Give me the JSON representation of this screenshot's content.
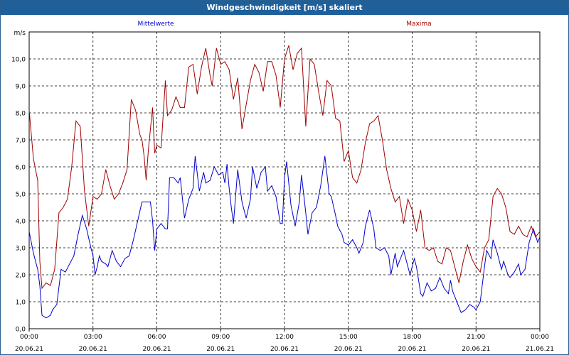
{
  "window": {
    "title": "Windgeschwindigkeit [m/s] skaliert"
  },
  "chart_data": {
    "type": "line",
    "ylabel": "m/s",
    "ylim": [
      0,
      11
    ],
    "yticks": [
      "0,0",
      "1,0",
      "2,0",
      "3,0",
      "4,0",
      "5,0",
      "6,0",
      "7,0",
      "8,0",
      "9,0",
      "10,0"
    ],
    "xlim_hours": [
      0,
      24
    ],
    "xticks": [
      {
        "time": "00:00",
        "date": "20.06.21"
      },
      {
        "time": "03:00",
        "date": "20.06.21"
      },
      {
        "time": "06:00",
        "date": "20.06.21"
      },
      {
        "time": "09:00",
        "date": "20.06.21"
      },
      {
        "time": "12:00",
        "date": "20.06.21"
      },
      {
        "time": "15:00",
        "date": "20.06.21"
      },
      {
        "time": "18:00",
        "date": "20.06.21"
      },
      {
        "time": "21:00",
        "date": "20.06.21"
      },
      {
        "time": "00:00",
        "date": "21.06.21"
      }
    ],
    "grid": true,
    "series": [
      {
        "name": "Mittelwerte",
        "color": "#0000cc",
        "points": [
          [
            0,
            3.6
          ],
          [
            0.2,
            2.8
          ],
          [
            0.4,
            2.2
          ],
          [
            0.5,
            1.6
          ],
          [
            0.6,
            0.5
          ],
          [
            0.8,
            0.4
          ],
          [
            1.0,
            0.5
          ],
          [
            1.1,
            0.7
          ],
          [
            1.3,
            0.9
          ],
          [
            1.5,
            2.2
          ],
          [
            1.7,
            2.1
          ],
          [
            1.9,
            2.4
          ],
          [
            2.1,
            2.7
          ],
          [
            2.3,
            3.5
          ],
          [
            2.5,
            4.2
          ],
          [
            2.7,
            3.7
          ],
          [
            2.9,
            3.0
          ],
          [
            3.0,
            2.7
          ],
          [
            3.1,
            2.0
          ],
          [
            3.2,
            2.3
          ],
          [
            3.3,
            2.7
          ],
          [
            3.4,
            2.5
          ],
          [
            3.6,
            2.4
          ],
          [
            3.7,
            2.3
          ],
          [
            3.9,
            2.9
          ],
          [
            4.1,
            2.5
          ],
          [
            4.3,
            2.3
          ],
          [
            4.5,
            2.6
          ],
          [
            4.7,
            2.7
          ],
          [
            4.9,
            3.3
          ],
          [
            5.1,
            4.0
          ],
          [
            5.3,
            4.7
          ],
          [
            5.5,
            4.7
          ],
          [
            5.7,
            4.7
          ],
          [
            5.8,
            4.0
          ],
          [
            5.9,
            2.9
          ],
          [
            6.0,
            3.7
          ],
          [
            6.2,
            3.9
          ],
          [
            6.4,
            3.7
          ],
          [
            6.5,
            3.7
          ],
          [
            6.6,
            5.6
          ],
          [
            6.8,
            5.6
          ],
          [
            7.0,
            5.4
          ],
          [
            7.1,
            5.6
          ],
          [
            7.3,
            4.1
          ],
          [
            7.5,
            4.8
          ],
          [
            7.7,
            5.2
          ],
          [
            7.8,
            6.4
          ],
          [
            8.0,
            5.1
          ],
          [
            8.2,
            5.8
          ],
          [
            8.3,
            5.4
          ],
          [
            8.5,
            5.5
          ],
          [
            8.7,
            6.0
          ],
          [
            8.9,
            5.7
          ],
          [
            9.1,
            5.8
          ],
          [
            9.2,
            5.4
          ],
          [
            9.3,
            6.1
          ],
          [
            9.4,
            5.2
          ],
          [
            9.5,
            4.5
          ],
          [
            9.6,
            3.9
          ],
          [
            9.8,
            5.9
          ],
          [
            10.0,
            4.7
          ],
          [
            10.2,
            4.1
          ],
          [
            10.4,
            4.8
          ],
          [
            10.5,
            6.0
          ],
          [
            10.7,
            5.2
          ],
          [
            10.9,
            5.8
          ],
          [
            11.1,
            6.0
          ],
          [
            11.2,
            5.1
          ],
          [
            11.4,
            5.3
          ],
          [
            11.6,
            4.9
          ],
          [
            11.8,
            3.9
          ],
          [
            11.9,
            3.9
          ],
          [
            12.0,
            5.6
          ],
          [
            12.1,
            6.2
          ],
          [
            12.3,
            4.6
          ],
          [
            12.5,
            3.8
          ],
          [
            12.7,
            4.7
          ],
          [
            12.8,
            5.7
          ],
          [
            13.0,
            4.3
          ],
          [
            13.1,
            3.5
          ],
          [
            13.3,
            4.3
          ],
          [
            13.5,
            4.5
          ],
          [
            13.7,
            5.3
          ],
          [
            13.9,
            6.4
          ],
          [
            14.1,
            5.0
          ],
          [
            14.2,
            4.9
          ],
          [
            14.4,
            4.2
          ],
          [
            14.5,
            3.8
          ],
          [
            14.7,
            3.5
          ],
          [
            14.8,
            3.2
          ],
          [
            15.0,
            3.1
          ],
          [
            15.2,
            3.3
          ],
          [
            15.4,
            3.0
          ],
          [
            15.5,
            2.8
          ],
          [
            15.7,
            3.2
          ],
          [
            15.8,
            3.8
          ],
          [
            16.0,
            4.4
          ],
          [
            16.2,
            3.7
          ],
          [
            16.3,
            3.0
          ],
          [
            16.5,
            2.9
          ],
          [
            16.7,
            3.0
          ],
          [
            16.9,
            2.7
          ],
          [
            17.0,
            2.0
          ],
          [
            17.2,
            2.8
          ],
          [
            17.3,
            2.3
          ],
          [
            17.4,
            2.5
          ],
          [
            17.6,
            2.9
          ],
          [
            17.8,
            2.3
          ],
          [
            17.9,
            2.0
          ],
          [
            18.1,
            2.6
          ],
          [
            18.2,
            2.3
          ],
          [
            18.4,
            1.3
          ],
          [
            18.5,
            1.2
          ],
          [
            18.7,
            1.7
          ],
          [
            18.9,
            1.4
          ],
          [
            19.1,
            1.5
          ],
          [
            19.3,
            1.9
          ],
          [
            19.5,
            1.5
          ],
          [
            19.7,
            1.3
          ],
          [
            19.8,
            1.8
          ],
          [
            19.9,
            1.4
          ],
          [
            20.1,
            1.0
          ],
          [
            20.3,
            0.6
          ],
          [
            20.5,
            0.7
          ],
          [
            20.7,
            0.9
          ],
          [
            20.9,
            0.8
          ],
          [
            21.0,
            0.7
          ],
          [
            21.2,
            1.0
          ],
          [
            21.4,
            2.3
          ],
          [
            21.5,
            2.9
          ],
          [
            21.7,
            2.6
          ],
          [
            21.8,
            3.3
          ],
          [
            22.0,
            2.8
          ],
          [
            22.2,
            2.2
          ],
          [
            22.3,
            2.5
          ],
          [
            22.5,
            2.0
          ],
          [
            22.6,
            1.9
          ],
          [
            22.8,
            2.1
          ],
          [
            23.0,
            2.4
          ],
          [
            23.1,
            2.0
          ],
          [
            23.3,
            2.2
          ],
          [
            23.5,
            3.2
          ],
          [
            23.7,
            3.7
          ],
          [
            23.9,
            3.2
          ],
          [
            24.0,
            3.4
          ]
        ]
      },
      {
        "name": "Maxima",
        "color": "#a00000",
        "points": [
          [
            0,
            8.1
          ],
          [
            0.2,
            6.3
          ],
          [
            0.4,
            5.5
          ],
          [
            0.5,
            2.5
          ],
          [
            0.6,
            1.5
          ],
          [
            0.8,
            1.7
          ],
          [
            1.0,
            1.6
          ],
          [
            1.2,
            2.2
          ],
          [
            1.4,
            4.3
          ],
          [
            1.6,
            4.5
          ],
          [
            1.8,
            4.8
          ],
          [
            2.0,
            6.0
          ],
          [
            2.2,
            7.7
          ],
          [
            2.4,
            7.5
          ],
          [
            2.6,
            5.1
          ],
          [
            2.8,
            3.8
          ],
          [
            3.0,
            4.9
          ],
          [
            3.2,
            4.8
          ],
          [
            3.4,
            5.0
          ],
          [
            3.6,
            5.9
          ],
          [
            3.8,
            5.3
          ],
          [
            4.0,
            4.8
          ],
          [
            4.2,
            5.0
          ],
          [
            4.4,
            5.4
          ],
          [
            4.6,
            5.9
          ],
          [
            4.8,
            8.5
          ],
          [
            5.0,
            8.1
          ],
          [
            5.2,
            7.2
          ],
          [
            5.3,
            7.0
          ],
          [
            5.4,
            6.4
          ],
          [
            5.5,
            5.5
          ],
          [
            5.6,
            6.6
          ],
          [
            5.8,
            8.2
          ],
          [
            5.9,
            6.5
          ],
          [
            6.0,
            6.8
          ],
          [
            6.2,
            6.7
          ],
          [
            6.4,
            9.2
          ],
          [
            6.5,
            7.9
          ],
          [
            6.7,
            8.1
          ],
          [
            6.9,
            8.6
          ],
          [
            7.1,
            8.2
          ],
          [
            7.3,
            8.2
          ],
          [
            7.5,
            9.7
          ],
          [
            7.7,
            9.8
          ],
          [
            7.9,
            8.7
          ],
          [
            8.1,
            9.7
          ],
          [
            8.3,
            10.4
          ],
          [
            8.5,
            9.4
          ],
          [
            8.6,
            9.0
          ],
          [
            8.8,
            10.4
          ],
          [
            9.0,
            9.8
          ],
          [
            9.2,
            9.9
          ],
          [
            9.4,
            9.6
          ],
          [
            9.6,
            8.5
          ],
          [
            9.8,
            9.3
          ],
          [
            10.0,
            7.4
          ],
          [
            10.2,
            8.3
          ],
          [
            10.4,
            9.2
          ],
          [
            10.6,
            9.8
          ],
          [
            10.8,
            9.5
          ],
          [
            11.0,
            8.8
          ],
          [
            11.2,
            9.9
          ],
          [
            11.4,
            9.9
          ],
          [
            11.6,
            9.4
          ],
          [
            11.8,
            8.2
          ],
          [
            12.0,
            10.0
          ],
          [
            12.2,
            10.5
          ],
          [
            12.4,
            9.6
          ],
          [
            12.6,
            10.2
          ],
          [
            12.8,
            10.4
          ],
          [
            13.0,
            7.5
          ],
          [
            13.2,
            10.0
          ],
          [
            13.4,
            9.8
          ],
          [
            13.6,
            8.8
          ],
          [
            13.8,
            7.9
          ],
          [
            14.0,
            9.2
          ],
          [
            14.2,
            9.0
          ],
          [
            14.4,
            7.8
          ],
          [
            14.6,
            7.7
          ],
          [
            14.8,
            6.2
          ],
          [
            15.0,
            6.6
          ],
          [
            15.2,
            5.6
          ],
          [
            15.4,
            5.4
          ],
          [
            15.6,
            5.9
          ],
          [
            15.8,
            6.9
          ],
          [
            16.0,
            7.6
          ],
          [
            16.2,
            7.7
          ],
          [
            16.4,
            7.9
          ],
          [
            16.6,
            7.0
          ],
          [
            16.8,
            5.9
          ],
          [
            17.0,
            5.2
          ],
          [
            17.2,
            4.7
          ],
          [
            17.4,
            4.9
          ],
          [
            17.6,
            3.9
          ],
          [
            17.8,
            4.8
          ],
          [
            18.0,
            4.4
          ],
          [
            18.2,
            3.6
          ],
          [
            18.4,
            4.4
          ],
          [
            18.6,
            3.0
          ],
          [
            18.8,
            2.9
          ],
          [
            19.0,
            3.0
          ],
          [
            19.2,
            2.5
          ],
          [
            19.4,
            2.4
          ],
          [
            19.6,
            3.0
          ],
          [
            19.8,
            2.9
          ],
          [
            20.0,
            2.3
          ],
          [
            20.2,
            1.7
          ],
          [
            20.4,
            2.5
          ],
          [
            20.6,
            3.1
          ],
          [
            20.8,
            2.6
          ],
          [
            21.0,
            2.3
          ],
          [
            21.2,
            2.1
          ],
          [
            21.4,
            3.0
          ],
          [
            21.6,
            3.3
          ],
          [
            21.8,
            4.9
          ],
          [
            22.0,
            5.2
          ],
          [
            22.2,
            5.0
          ],
          [
            22.4,
            4.5
          ],
          [
            22.6,
            3.6
          ],
          [
            22.8,
            3.5
          ],
          [
            23.0,
            3.8
          ],
          [
            23.2,
            3.5
          ],
          [
            23.4,
            3.4
          ],
          [
            23.6,
            3.8
          ],
          [
            23.8,
            3.4
          ],
          [
            24.0,
            3.6
          ]
        ]
      }
    ]
  }
}
